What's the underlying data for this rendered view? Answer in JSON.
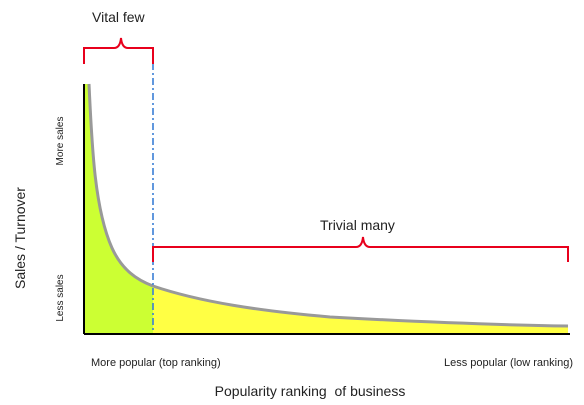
{
  "labels": {
    "vital_few": "Vital few",
    "trivial_many": "Trivial many",
    "y_axis_title": "Sales / Turnover",
    "y_high": "More sales",
    "y_low": "Less sales",
    "x_left": "More popular (top ranking)",
    "x_right": "Less popular (low ranking)",
    "x_axis_title": "Popularity ranking  of business"
  },
  "colors": {
    "head_fill": "#ccff33",
    "tail_fill": "#ffff44",
    "curve": "#999999",
    "bracket": "#e8001c",
    "divider": "#3a7fd5",
    "axis": "#000000"
  }
}
